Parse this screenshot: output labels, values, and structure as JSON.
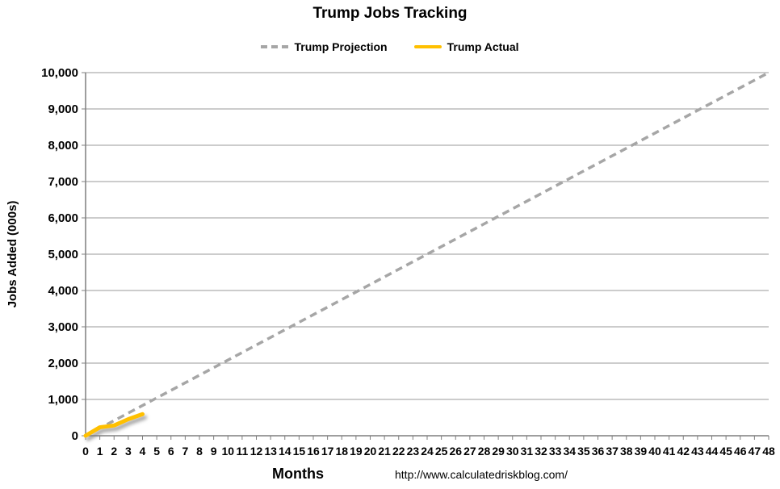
{
  "chart_data": {
    "type": "line",
    "title": "Trump Jobs Tracking",
    "xlabel": "Months",
    "ylabel": "Jobs Added (000s)",
    "xlim": [
      0,
      48
    ],
    "ylim": [
      0,
      10000
    ],
    "xtick_step": 1,
    "ytick_step": 1000,
    "grid": "horizontal-only",
    "legend_position": "top-center",
    "colors": {
      "gridline": "#9a9a9a",
      "axis": "#7f7f7f",
      "text": "#000000"
    },
    "series": [
      {
        "name": "Trump Projection",
        "style": "dashed",
        "color": "#a6a6a6",
        "width": 3.5,
        "shadow": false,
        "points": [
          [
            0,
            0
          ],
          [
            48,
            10000
          ]
        ]
      },
      {
        "name": "Trump Actual",
        "style": "solid",
        "color": "#ffc000",
        "width": 5,
        "shadow": true,
        "points": [
          [
            0,
            0
          ],
          [
            1,
            232
          ],
          [
            2,
            282
          ],
          [
            3,
            455
          ],
          [
            4,
            594
          ]
        ]
      }
    ]
  },
  "footer": {
    "source_url": "http://www.calculatedriskblog.com/"
  }
}
